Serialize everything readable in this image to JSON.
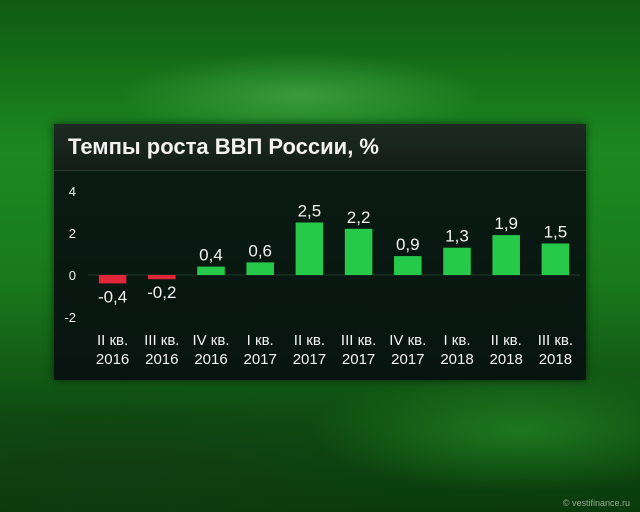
{
  "chart_data": {
    "type": "bar",
    "title": "Темпы роста ВВП России, %",
    "categories": [
      [
        "II кв.",
        "2016"
      ],
      [
        "III кв.",
        "2016"
      ],
      [
        "IV кв.",
        "2016"
      ],
      [
        "I кв.",
        "2017"
      ],
      [
        "II кв.",
        "2017"
      ],
      [
        "III кв.",
        "2017"
      ],
      [
        "IV кв.",
        "2017"
      ],
      [
        "I кв.",
        "2018"
      ],
      [
        "II кв.",
        "2018"
      ],
      [
        "III кв.",
        "2018"
      ]
    ],
    "values": [
      -0.4,
      -0.2,
      0.4,
      0.6,
      2.5,
      2.2,
      0.9,
      1.3,
      1.9,
      1.5
    ],
    "value_labels": [
      "-0,4",
      "-0,2",
      "0,4",
      "0,6",
      "2,5",
      "2,2",
      "0,9",
      "1,3",
      "1,9",
      "1,5"
    ],
    "ylim": [
      -2,
      4
    ],
    "yticks": [
      4,
      2,
      0,
      -2
    ],
    "xlabel": "",
    "ylabel": "",
    "grid": false,
    "colors": {
      "positive": "#27c94a",
      "negative": "#e0273a",
      "panel": "#0e1712",
      "text": "#f2f2f2"
    }
  },
  "watermark": "© vestifinance.ru"
}
